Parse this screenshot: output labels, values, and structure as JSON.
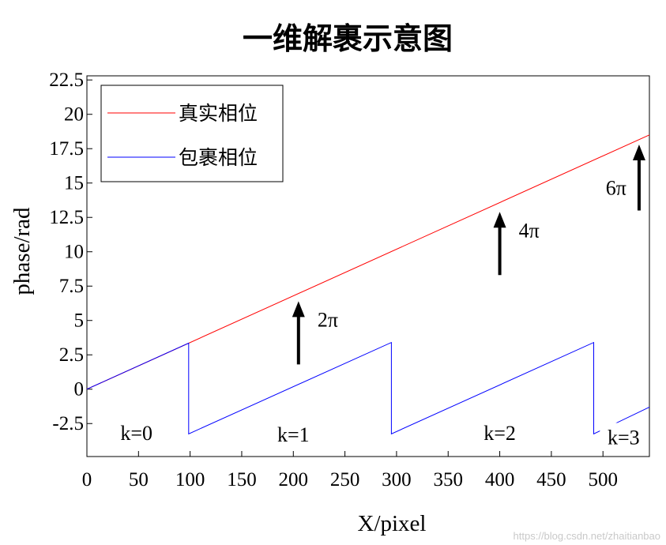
{
  "chart_data": {
    "type": "line",
    "title": "一维解裹示意图",
    "xlabel": "X/pixel",
    "ylabel": "phase/rad",
    "xlim": [
      0,
      545
    ],
    "ylim": [
      -4.9,
      22.8
    ],
    "xticks": [
      0,
      50,
      100,
      150,
      200,
      250,
      300,
      350,
      400,
      450,
      500
    ],
    "xtick_labels": [
      "0",
      "50",
      "100",
      "150",
      "200",
      "250",
      "300",
      "350",
      "400",
      "450",
      "500"
    ],
    "yticks": [
      -2.5,
      0,
      2.5,
      5,
      7.5,
      10,
      12.5,
      15,
      17.5,
      20,
      22.5
    ],
    "ytick_labels": [
      "-2.5",
      "0",
      "2.5",
      "5",
      "7.5",
      "10",
      "12.5",
      "15",
      "17.5",
      "20",
      "22.5"
    ],
    "grid": false,
    "legend_position": "top-left",
    "series": [
      {
        "name": "真实相位",
        "color": "#ff0000",
        "x": [
          0,
          545
        ],
        "y": [
          0,
          18.5
        ]
      },
      {
        "name": "包裹相位",
        "color": "#0000ff",
        "x": [
          0,
          98.6,
          98.6,
          295,
          295,
          491,
          491,
          545
        ],
        "y": [
          0,
          3.35,
          -3.25,
          3.4,
          -3.25,
          3.4,
          -3.25,
          -1.3
        ]
      }
    ],
    "annotations": [
      {
        "label": "2π",
        "x": 205,
        "y_from": 1.8,
        "y_to": 6.4
      },
      {
        "label": "4π",
        "x": 400,
        "y_from": 8.3,
        "y_to": 12.9
      },
      {
        "label": "6π",
        "x": 535,
        "y_from": 13.0,
        "y_to": 17.8
      }
    ],
    "region_labels": [
      {
        "label": "k=0",
        "x": 48,
        "y": -3.3
      },
      {
        "label": "k=1",
        "x": 200,
        "y": -3.4
      },
      {
        "label": "k=2",
        "x": 400,
        "y": -3.3
      },
      {
        "label": "k=3",
        "x": 520,
        "y": -3.6
      }
    ]
  },
  "watermark": "https://blog.csdn.net/zhaitianbao"
}
